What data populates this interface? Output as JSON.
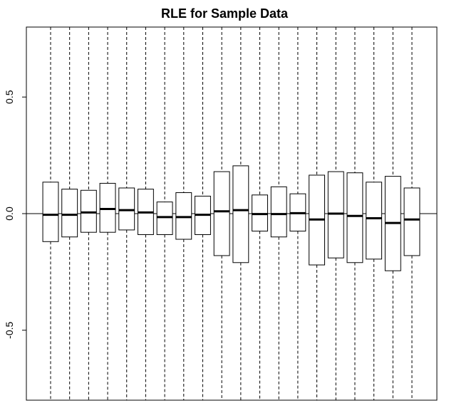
{
  "chart_data": {
    "type": "boxplot",
    "title": "RLE for Sample Data",
    "xlabel": "",
    "ylabel": "",
    "ylim": [
      -0.8,
      0.8
    ],
    "yticks": [
      -0.5,
      0.0,
      0.5
    ],
    "ytick_labels": [
      "-0.5",
      "0.0",
      "0.5"
    ],
    "reference_line_y": 0.0,
    "whiskers": "dashed",
    "grid": false,
    "legend": "none",
    "color": "#000000",
    "boxes": [
      {
        "q1": -0.12,
        "median": -0.005,
        "q3": 0.135,
        "whisker_low": -0.8,
        "whisker_high": 0.8
      },
      {
        "q1": -0.1,
        "median": -0.005,
        "q3": 0.105,
        "whisker_low": -0.8,
        "whisker_high": 0.8
      },
      {
        "q1": -0.08,
        "median": 0.005,
        "q3": 0.1,
        "whisker_low": -0.8,
        "whisker_high": 0.8
      },
      {
        "q1": -0.08,
        "median": 0.02,
        "q3": 0.13,
        "whisker_low": -0.8,
        "whisker_high": 0.8
      },
      {
        "q1": -0.07,
        "median": 0.015,
        "q3": 0.11,
        "whisker_low": -0.8,
        "whisker_high": 0.8
      },
      {
        "q1": -0.09,
        "median": 0.005,
        "q3": 0.105,
        "whisker_low": -0.8,
        "whisker_high": 0.8
      },
      {
        "q1": -0.09,
        "median": -0.015,
        "q3": 0.05,
        "whisker_low": -0.8,
        "whisker_high": 0.8
      },
      {
        "q1": -0.11,
        "median": -0.015,
        "q3": 0.09,
        "whisker_low": -0.8,
        "whisker_high": 0.8
      },
      {
        "q1": -0.09,
        "median": -0.005,
        "q3": 0.075,
        "whisker_low": -0.8,
        "whisker_high": 0.8
      },
      {
        "q1": -0.18,
        "median": 0.01,
        "q3": 0.18,
        "whisker_low": -0.8,
        "whisker_high": 0.8
      },
      {
        "q1": -0.21,
        "median": 0.015,
        "q3": 0.205,
        "whisker_low": -0.8,
        "whisker_high": 0.8
      },
      {
        "q1": -0.075,
        "median": -0.002,
        "q3": 0.08,
        "whisker_low": -0.8,
        "whisker_high": 0.8
      },
      {
        "q1": -0.1,
        "median": -0.002,
        "q3": 0.115,
        "whisker_low": -0.8,
        "whisker_high": 0.8
      },
      {
        "q1": -0.075,
        "median": 0.002,
        "q3": 0.085,
        "whisker_low": -0.8,
        "whisker_high": 0.8
      },
      {
        "q1": -0.22,
        "median": -0.025,
        "q3": 0.165,
        "whisker_low": -0.8,
        "whisker_high": 0.8
      },
      {
        "q1": -0.19,
        "median": 0.0,
        "q3": 0.18,
        "whisker_low": -0.8,
        "whisker_high": 0.8
      },
      {
        "q1": -0.21,
        "median": -0.01,
        "q3": 0.175,
        "whisker_low": -0.8,
        "whisker_high": 0.8
      },
      {
        "q1": -0.195,
        "median": -0.02,
        "q3": 0.135,
        "whisker_low": -0.8,
        "whisker_high": 0.8
      },
      {
        "q1": -0.245,
        "median": -0.04,
        "q3": 0.16,
        "whisker_low": -0.8,
        "whisker_high": 0.8
      },
      {
        "q1": -0.18,
        "median": -0.025,
        "q3": 0.11,
        "whisker_low": -0.8,
        "whisker_high": 0.8
      }
    ]
  }
}
